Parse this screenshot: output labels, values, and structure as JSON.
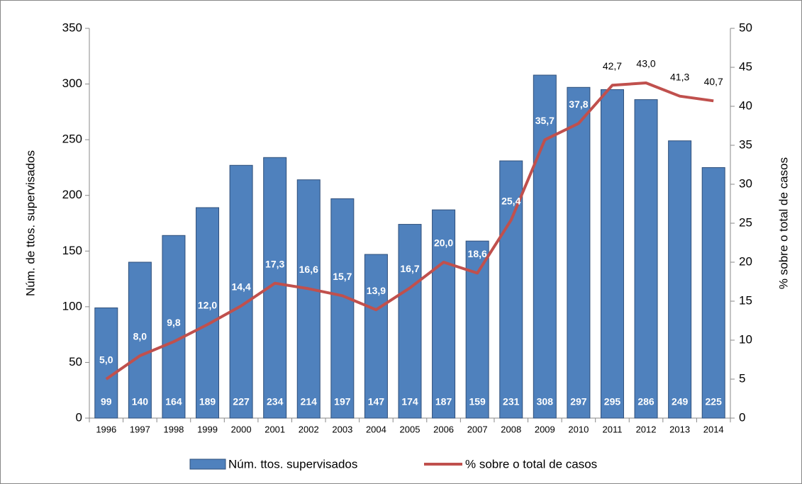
{
  "chart_data": {
    "type": "combo",
    "categories": [
      "1996",
      "1997",
      "1998",
      "1999",
      "2000",
      "2001",
      "2002",
      "2003",
      "2004",
      "2005",
      "2006",
      "2007",
      "2008",
      "2009",
      "2010",
      "2011",
      "2012",
      "2013",
      "2014"
    ],
    "series": [
      {
        "name": "Núm. ttos. supervisados",
        "type": "bar",
        "color": "#4f81bd",
        "axis": "y",
        "values": [
          99,
          140,
          164,
          189,
          227,
          234,
          214,
          197,
          147,
          174,
          187,
          159,
          231,
          308,
          297,
          295,
          286,
          249,
          225
        ]
      },
      {
        "name": "% sobre o total de casos",
        "type": "line",
        "color": "#c0504d",
        "axis": "y2",
        "values": [
          5.0,
          8.0,
          9.8,
          12.0,
          14.4,
          17.3,
          16.6,
          15.7,
          13.9,
          16.7,
          20.0,
          18.6,
          25.4,
          35.7,
          37.8,
          42.7,
          43.0,
          41.3,
          40.7
        ],
        "value_labels": [
          "5,0",
          "8,0",
          "9,8",
          "12,0",
          "14,4",
          "17,3",
          "16,6",
          "15,7",
          "13,9",
          "16,7",
          "20,0",
          "18,6",
          "25,4",
          "35,7",
          "37,8",
          "42,7",
          "43,0",
          "41,3",
          "40,7"
        ]
      }
    ],
    "ylabel": "Núm. de ttos. supervisados",
    "y2label": "% sobre o total de casos",
    "ylim": [
      0,
      350
    ],
    "yticks": [
      0,
      50,
      100,
      150,
      200,
      250,
      300,
      350
    ],
    "y2lim": [
      0,
      50
    ],
    "y2ticks": [
      0,
      5,
      10,
      15,
      20,
      25,
      30,
      35,
      40,
      45,
      50
    ],
    "legend": "bottom"
  }
}
